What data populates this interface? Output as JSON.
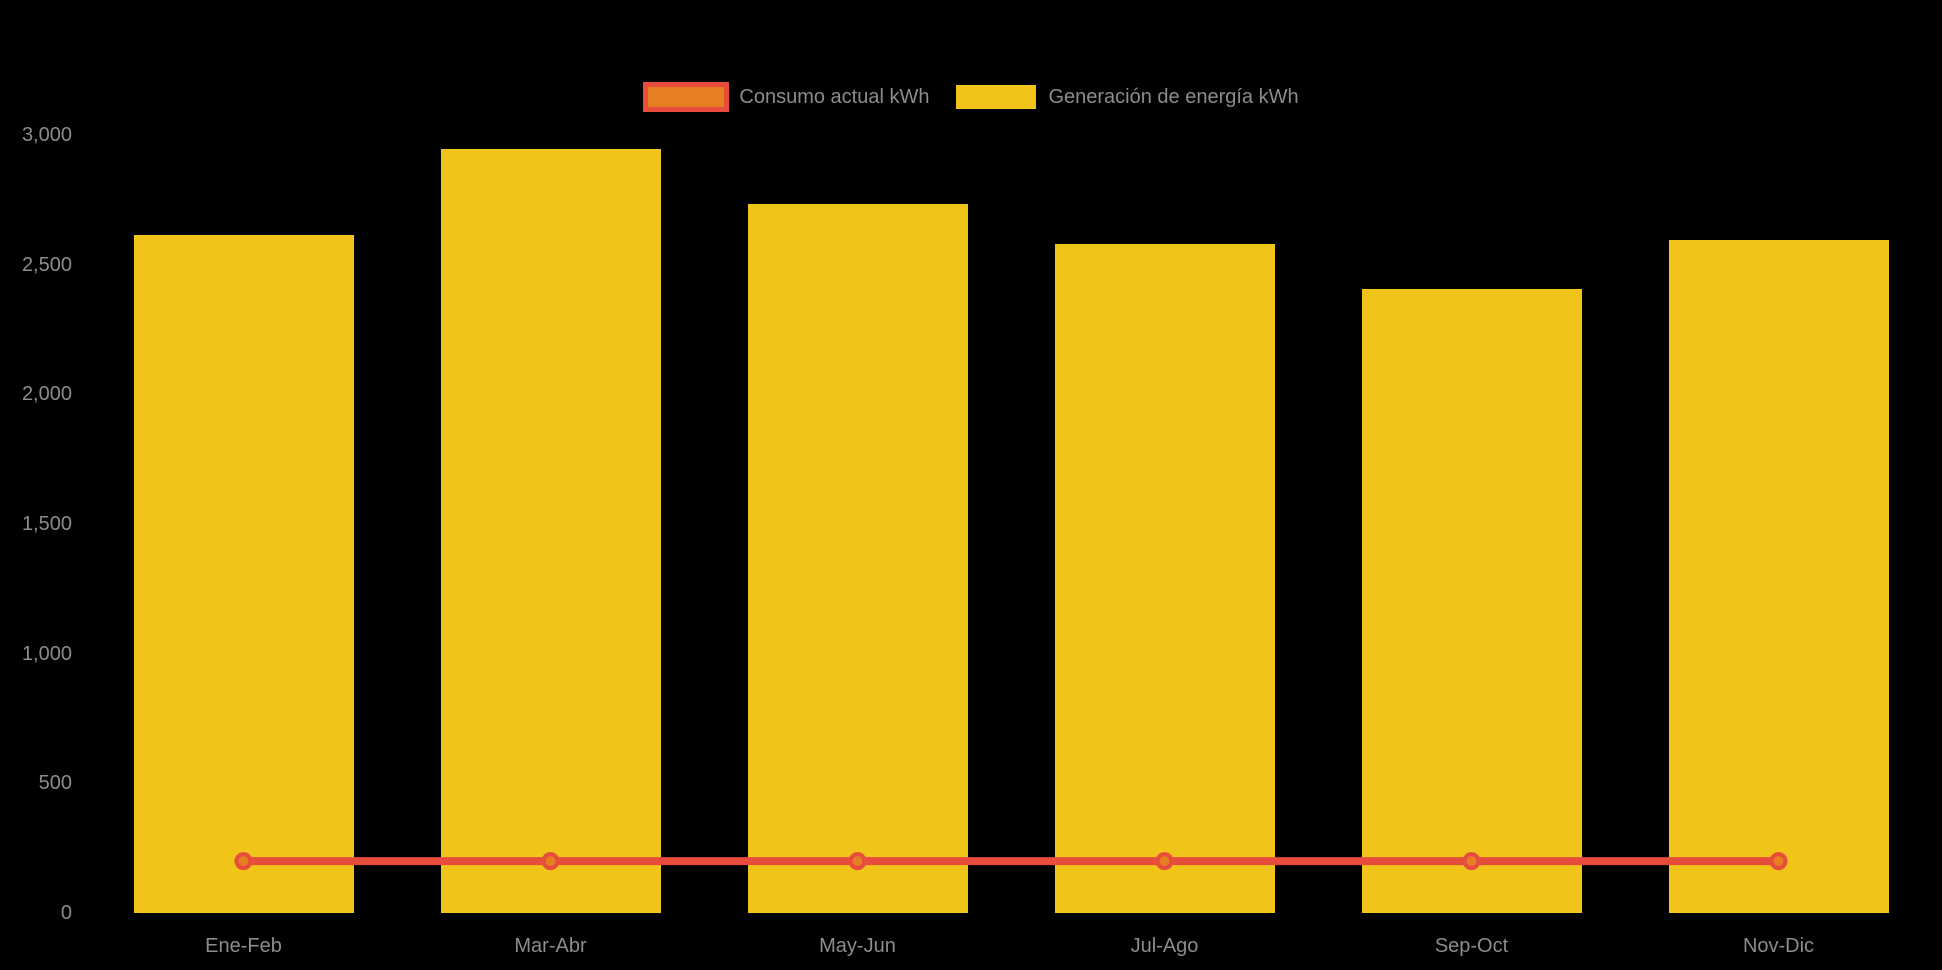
{
  "chart_data": {
    "type": "bar",
    "title": "",
    "xlabel": "",
    "ylabel": "",
    "categories": [
      "Ene-Feb",
      "Mar-Abr",
      "May-Jun",
      "Jul-Ago",
      "Sep-Oct",
      "Nov-Dic"
    ],
    "series": [
      {
        "name": "Consumo actual kWh",
        "type": "line",
        "values": [
          200,
          200,
          200,
          200,
          200,
          200
        ],
        "line_color": "#e74c3c",
        "marker_fill": "#e67e22",
        "marker_stroke": "#e74c3c"
      },
      {
        "name": "Generación de energía kWh",
        "type": "bar",
        "values": [
          2615,
          2945,
          2735,
          2580,
          2405,
          2595
        ],
        "color": "#f0c419"
      }
    ],
    "ylim": [
      0,
      3000
    ],
    "yticks": [
      0,
      500,
      1000,
      1500,
      2000,
      2500,
      3000
    ],
    "ytick_labels": [
      "0",
      "500",
      "1,000",
      "1,500",
      "2,000",
      "2,500",
      "3,000"
    ],
    "grid": false,
    "legend_position": "top-center",
    "colors": {
      "background": "#000000",
      "bar_yellow": "#f0c419",
      "line_red": "#e74c3c",
      "marker_orange": "#e67e22",
      "axis_text": "#8c8c8c"
    }
  }
}
